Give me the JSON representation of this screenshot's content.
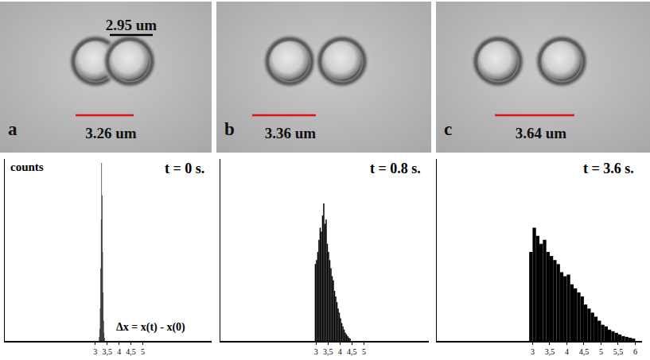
{
  "images": [
    {
      "letter": "a",
      "separation": "3.26 um",
      "scale_bar": "2.95 um"
    },
    {
      "letter": "b",
      "separation": "3.36 um"
    },
    {
      "letter": "c",
      "separation": "3.64 um"
    }
  ],
  "chart_data": [
    {
      "type": "histogram",
      "title": "t = 0 s.",
      "y_label": "counts",
      "x_label": "Δx = x(t) - x(0)",
      "bins": [
        3.16,
        3.18,
        3.2,
        3.22,
        3.24,
        3.26,
        3.28,
        3.3,
        3.32,
        3.34,
        3.36,
        3.38,
        3.4
      ],
      "values": [
        5,
        15,
        40,
        90,
        150,
        220,
        180,
        110,
        60,
        25,
        10,
        4
      ],
      "color": "#000000",
      "xlim": [
        -0.8,
        7.9
      ],
      "ylim": [
        0,
        225
      ],
      "xticks": [
        3,
        {
          "value": 3.5,
          "label": "3,5"
        },
        4,
        {
          "value": 4.5,
          "label": "4,5"
        },
        5
      ],
      "tick_labels": "x"
    },
    {
      "type": "histogram",
      "title": "t = 0.8 s.",
      "bins": [
        2.95,
        3,
        3.05,
        3.1,
        3.15,
        3.2,
        3.25,
        3.3,
        3.35,
        3.4,
        3.45,
        3.5,
        3.55,
        3.6,
        3.65,
        3.7,
        3.75,
        3.8,
        3.85,
        3.9,
        3.95,
        4,
        4.05,
        4.1,
        4.15,
        4.2,
        4.25,
        4.3,
        4.35,
        4.4,
        4.45
      ],
      "values": [
        95,
        100,
        110,
        125,
        140,
        135,
        155,
        170,
        145,
        150,
        120,
        110,
        100,
        90,
        80,
        75,
        62,
        55,
        48,
        40,
        35,
        28,
        22,
        18,
        14,
        10,
        8,
        6,
        4,
        3
      ],
      "color": "#000000",
      "xlim": [
        -1,
        7.7
      ],
      "ylim": [
        0,
        225
      ],
      "xticks": [
        3,
        {
          "value": 3.5,
          "label": "3,5"
        },
        4,
        {
          "value": 4.5,
          "label": "4,5"
        },
        5
      ],
      "tick_labels": "x"
    },
    {
      "type": "histogram",
      "title": "t = 3.6 s.",
      "bins": [
        2.9,
        3,
        3.1,
        3.2,
        3.3,
        3.4,
        3.5,
        3.6,
        3.7,
        3.8,
        3.9,
        4,
        4.1,
        4.2,
        4.3,
        4.4,
        4.5,
        4.6,
        4.7,
        4.8,
        4.9,
        5,
        5.1,
        5.2,
        5.3,
        5.4,
        5.5,
        5.6,
        5.7,
        5.8,
        5.9,
        6
      ],
      "values": [
        110,
        140,
        130,
        120,
        125,
        110,
        105,
        100,
        95,
        85,
        80,
        82,
        70,
        65,
        60,
        55,
        45,
        40,
        35,
        30,
        25,
        20,
        18,
        14,
        12,
        10,
        8,
        6,
        5,
        4,
        3
      ],
      "color": "#000000",
      "xlim": [
        0.2,
        6.2
      ],
      "ylim": [
        0,
        225
      ],
      "xticks": [
        3,
        {
          "value": 3.5,
          "label": "3,5"
        },
        4,
        {
          "value": 4.5,
          "label": "4,5"
        },
        5,
        {
          "value": 5.5,
          "label": "5,5"
        },
        6
      ],
      "tick_labels": "x"
    }
  ]
}
